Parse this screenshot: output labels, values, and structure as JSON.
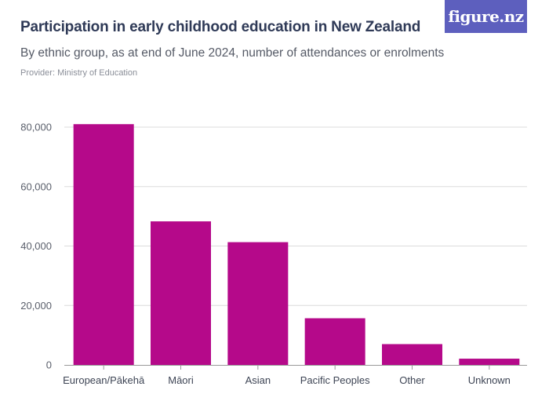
{
  "header": {
    "title": "Participation in early childhood education in New Zealand",
    "subtitle": "By ethnic group, as at end of June 2024, number of attendances or enrolments",
    "provider": "Provider: Ministry of Education"
  },
  "logo": {
    "text": "figure.nz",
    "color": "#5d5fbe"
  },
  "chart_data": {
    "type": "bar",
    "categories": [
      "European/Pākehā",
      "Māori",
      "Asian",
      "Pacific Peoples",
      "Other",
      "Unknown"
    ],
    "values": [
      81000,
      48300,
      41300,
      15700,
      7000,
      2100
    ],
    "ylim": [
      0,
      80000
    ],
    "yticks": [
      0,
      20000,
      40000,
      60000,
      80000
    ],
    "ytick_labels": [
      "0",
      "20,000",
      "40,000",
      "60,000",
      "80,000"
    ],
    "grid": true,
    "bar_color": "#b5098a"
  }
}
